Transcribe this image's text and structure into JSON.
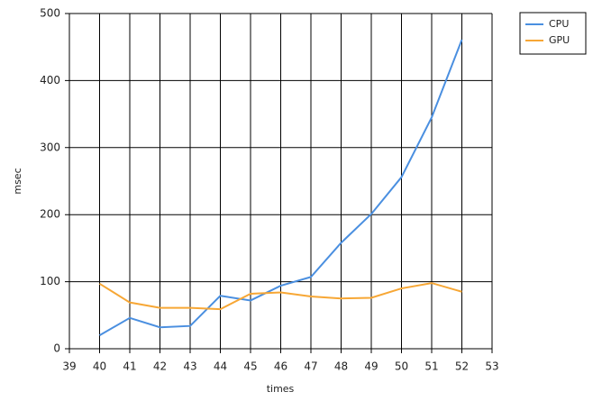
{
  "chart_data": {
    "type": "line",
    "x_label": "times",
    "y_label": "msec",
    "x": [
      40,
      41,
      42,
      43,
      44,
      45,
      46,
      47,
      48,
      49,
      50,
      51,
      52
    ],
    "series": [
      {
        "name": "CPU",
        "color": "#4a8fe0",
        "values": [
          20,
          46,
          32,
          34,
          79,
          72,
          94,
          107,
          158,
          201,
          256,
          345,
          461
        ]
      },
      {
        "name": "GPU",
        "color": "#f7a735",
        "values": [
          97,
          69,
          61,
          61,
          59,
          82,
          84,
          78,
          75,
          76,
          90,
          98,
          85
        ]
      }
    ],
    "xlim": [
      39,
      53
    ],
    "xticks": [
      39,
      40,
      41,
      42,
      43,
      44,
      45,
      46,
      47,
      48,
      49,
      50,
      51,
      52,
      53
    ],
    "ylim": [
      0,
      500
    ],
    "yticks": [
      0,
      100,
      200,
      300,
      400,
      500
    ],
    "grid": true,
    "legend": "right"
  }
}
